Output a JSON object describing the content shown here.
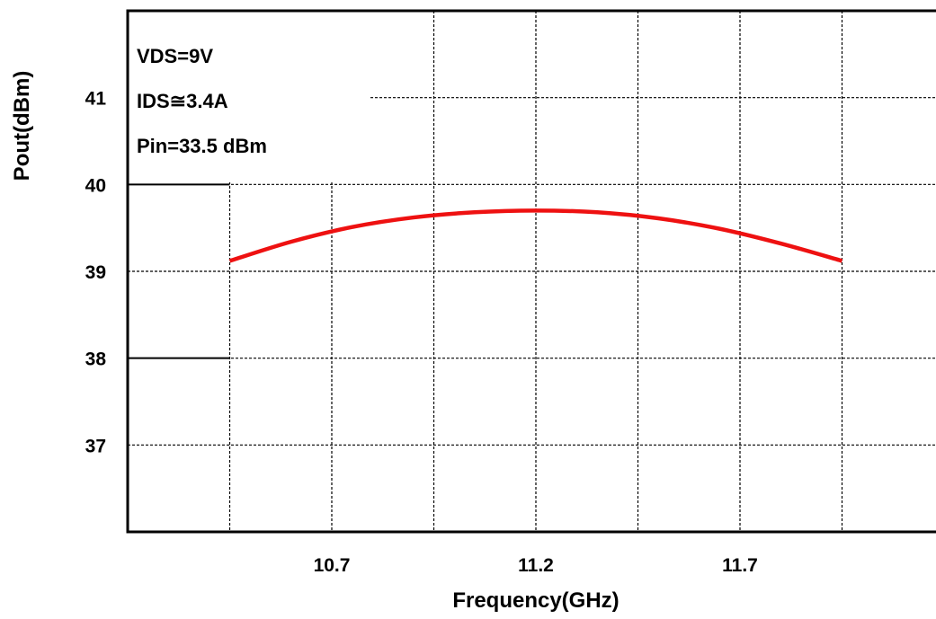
{
  "chart_data": {
    "type": "line",
    "xlabel": "Frequency(GHz)",
    "ylabel": "Pout(dBm)",
    "xlim": [
      10.2,
      12.2
    ],
    "ylim": [
      36,
      42
    ],
    "x_ticks": [
      10.7,
      11.2,
      11.7
    ],
    "x_tick_labels": [
      "10.7",
      "11.2",
      "11.7"
    ],
    "y_ticks": [
      37,
      38,
      39,
      40,
      41
    ],
    "y_tick_labels": [
      "37",
      "38",
      "39",
      "40",
      "41"
    ],
    "grid": true,
    "annotations": [
      "VDS=9V",
      "IDS≅3.4A",
      "Pin=33.5 dBm"
    ],
    "series": [
      {
        "color": "#ee1111",
        "x": [
          10.45,
          10.6,
          10.75,
          10.9,
          11.05,
          11.2,
          11.35,
          11.5,
          11.65,
          11.8,
          11.95
        ],
        "y": [
          39.12,
          39.34,
          39.51,
          39.62,
          39.68,
          39.7,
          39.68,
          39.61,
          39.49,
          39.32,
          39.12
        ]
      }
    ]
  }
}
